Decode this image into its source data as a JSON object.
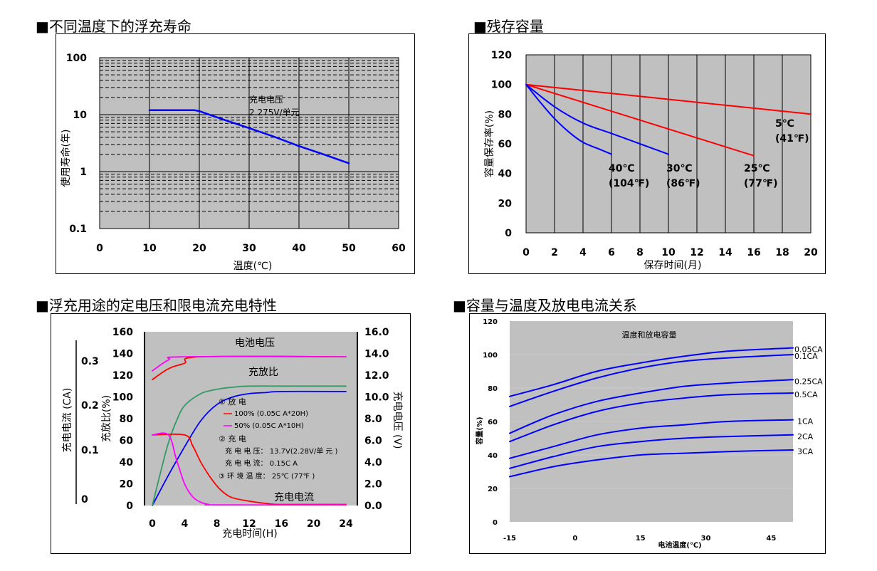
{
  "titles": {
    "p1": "■不同温度下的浮充寿命",
    "p2": "■残存容量",
    "p3": "■浮充用途的定电压和限电流充电特性",
    "p4": "■容量与温度及放电电流关系"
  },
  "colors": {
    "plot_bg": "#c0c0c0",
    "blue": "#0000ff",
    "red": "#ff0000",
    "green": "#339966",
    "magenta": "#ff00ff"
  },
  "chart_data": [
    {
      "id": "float-life",
      "type": "line",
      "xlabel": "温度(℃)",
      "ylabel": "使用寿命(年)",
      "xlim": [
        0,
        60
      ],
      "ylim": [
        0.1,
        100
      ],
      "yscale": "log",
      "x_ticks": [
        "0",
        "10",
        "20",
        "30",
        "40",
        "50",
        "60"
      ],
      "y_ticks": [
        "100",
        "10",
        "1",
        "0.1"
      ],
      "annotation": [
        "充电电压",
        "2.275V/单元"
      ],
      "series": [
        {
          "color": "blue",
          "x": [
            10,
            19,
            20,
            25,
            30,
            35,
            40,
            45,
            50
          ],
          "y": [
            12,
            12,
            11.5,
            8.1,
            5.8,
            4.1,
            2.8,
            2.0,
            1.4
          ]
        }
      ]
    },
    {
      "id": "residual-capacity",
      "type": "line",
      "xlabel": "保存时间(月)",
      "ylabel": "容量保存率(%)",
      "xlim": [
        0,
        20
      ],
      "ylim": [
        0,
        120
      ],
      "x_ticks": [
        "0",
        "2",
        "4",
        "6",
        "8",
        "10",
        "12",
        "14",
        "16",
        "18",
        "20"
      ],
      "y_ticks": [
        "120",
        "100",
        "80",
        "60",
        "40",
        "20",
        "0"
      ],
      "series": [
        {
          "color": "red",
          "label": [
            "5℃",
            "(41℉)"
          ],
          "x": [
            0,
            5,
            10,
            15,
            20
          ],
          "y": [
            100,
            95,
            90,
            85,
            80
          ]
        },
        {
          "color": "red",
          "label": [
            "25℃",
            "(77℉)"
          ],
          "x": [
            0,
            4,
            8,
            12,
            16
          ],
          "y": [
            100,
            88,
            76,
            64,
            52
          ]
        },
        {
          "color": "blue",
          "label": [
            "30℃",
            "(86℉)"
          ],
          "x": [
            0,
            2,
            4,
            6,
            8,
            10
          ],
          "y": [
            100,
            85,
            74,
            67,
            60,
            53
          ]
        },
        {
          "color": "blue",
          "label": [
            "40℃",
            "(104℉)"
          ],
          "x": [
            0,
            1,
            2,
            3,
            4,
            5,
            6
          ],
          "y": [
            100,
            88,
            77,
            68,
            61,
            57,
            53
          ]
        }
      ]
    },
    {
      "id": "charge-characteristics",
      "type": "line",
      "xlabel": "充电时间(H)",
      "ylabel_left_outer": "充电电流 (CA)",
      "ylabel_left": "充放比(%)",
      "ylabel_right": "充电电压 (V)",
      "xlim": [
        0,
        24
      ],
      "ylim": [
        0,
        160
      ],
      "ylim_voltage": [
        0,
        16
      ],
      "ylim_current": [
        0,
        0.3
      ],
      "x_ticks": [
        "0",
        "4",
        "8",
        "12",
        "16",
        "20",
        "24"
      ],
      "y_ticks": [
        "160",
        "140",
        "120",
        "100",
        "80",
        "60",
        "40",
        "20",
        "0"
      ],
      "y2_ticks": [
        "16.0",
        "14.0",
        "12.0",
        "10.0",
        "8.0",
        "6.0",
        "4.0",
        "2.0",
        "0.0"
      ],
      "y3_ticks": [
        "0.3",
        "0.2",
        "0.1",
        "0"
      ],
      "curve_labels": {
        "voltage": "电池电压",
        "ratio": "充放比",
        "current": "充电电流"
      },
      "legend": {
        "discharge_title": "① 放 电",
        "d100": "100% (0.05C A*20H)",
        "d50": "50% (0.05C A*10H)",
        "charge_title": "② 充 电",
        "charge_voltage": "充 电 电 压： 13.7V(2.28V/单 元 )",
        "charge_current": "充 电 电 流： 0.15C A",
        "ambient": "③ 环 境 温 度： 25℃ (77℉ )"
      },
      "series": [
        {
          "name": "voltage_100",
          "color": "red",
          "x": [
            0,
            2,
            4,
            6,
            24
          ],
          "y": [
            11.6,
            12.6,
            13.1,
            13.7,
            13.7
          ]
        },
        {
          "name": "voltage_50",
          "color": "magenta",
          "x": [
            0,
            2,
            4,
            24
          ],
          "y": [
            12.4,
            13.4,
            13.7,
            13.7
          ]
        },
        {
          "name": "ratio_100",
          "color": "blue",
          "x": [
            0,
            2,
            4,
            6,
            8,
            10,
            12,
            14,
            16,
            24
          ],
          "y": [
            0,
            28,
            54,
            78,
            93,
            100,
            103,
            104,
            105,
            105
          ]
        },
        {
          "name": "ratio_50",
          "color": "green",
          "x": [
            0,
            1,
            2,
            3,
            4,
            6,
            8,
            10,
            12,
            16,
            24
          ],
          "y": [
            0,
            30,
            58,
            78,
            92,
            103,
            107,
            109,
            110,
            110,
            110
          ]
        },
        {
          "name": "current_100",
          "color": "red",
          "x": [
            0,
            4,
            5,
            6,
            7,
            8,
            9,
            10,
            12,
            14,
            16,
            24
          ],
          "y": [
            65,
            65,
            55,
            40,
            28,
            18,
            11,
            7,
            4,
            2,
            1,
            1
          ]
        },
        {
          "name": "current_50",
          "color": "magenta",
          "x": [
            0,
            2,
            3,
            4,
            5,
            6,
            7,
            8,
            24
          ],
          "y": [
            65,
            65,
            42,
            20,
            8,
            3,
            1,
            0.5,
            0.5
          ]
        }
      ]
    },
    {
      "id": "capacity-temperature",
      "type": "line",
      "title": "温度和放电容量",
      "xlabel": "电池温度(℃)",
      "ylabel": "容量(%)",
      "xlim": [
        -15,
        50
      ],
      "ylim": [
        0,
        120
      ],
      "x_ticks": [
        "-15",
        "0",
        "15",
        "30",
        "45"
      ],
      "y_ticks": [
        "120",
        "100",
        "80",
        "60",
        "40",
        "20",
        "0"
      ],
      "series": [
        {
          "name": "0.05CA",
          "x": [
            -15,
            -5,
            5,
            15,
            25,
            35,
            50
          ],
          "y": [
            75,
            82,
            90,
            95,
            99,
            102,
            104
          ]
        },
        {
          "name": "0.1CA",
          "x": [
            -15,
            -5,
            5,
            15,
            25,
            35,
            50
          ],
          "y": [
            69,
            78,
            86,
            92,
            96,
            98,
            100
          ]
        },
        {
          "name": "0.25CA",
          "x": [
            -15,
            -5,
            5,
            15,
            25,
            35,
            50
          ],
          "y": [
            53,
            64,
            72,
            77,
            81,
            83,
            85
          ]
        },
        {
          "name": "0.5CA",
          "x": [
            -15,
            -5,
            5,
            15,
            25,
            35,
            50
          ],
          "y": [
            48,
            58,
            66,
            71,
            74,
            76,
            77
          ]
        },
        {
          "name": "1CA",
          "x": [
            -15,
            -5,
            5,
            15,
            25,
            35,
            50
          ],
          "y": [
            38,
            45,
            52,
            56,
            58,
            60,
            61
          ]
        },
        {
          "name": "2CA",
          "x": [
            -15,
            -5,
            5,
            15,
            25,
            35,
            50
          ],
          "y": [
            32,
            39,
            45,
            48,
            50,
            51,
            52
          ]
        },
        {
          "name": "3CA",
          "x": [
            -15,
            -5,
            5,
            15,
            25,
            35,
            50
          ],
          "y": [
            27,
            33,
            37,
            40,
            41,
            42,
            43
          ]
        }
      ]
    }
  ]
}
